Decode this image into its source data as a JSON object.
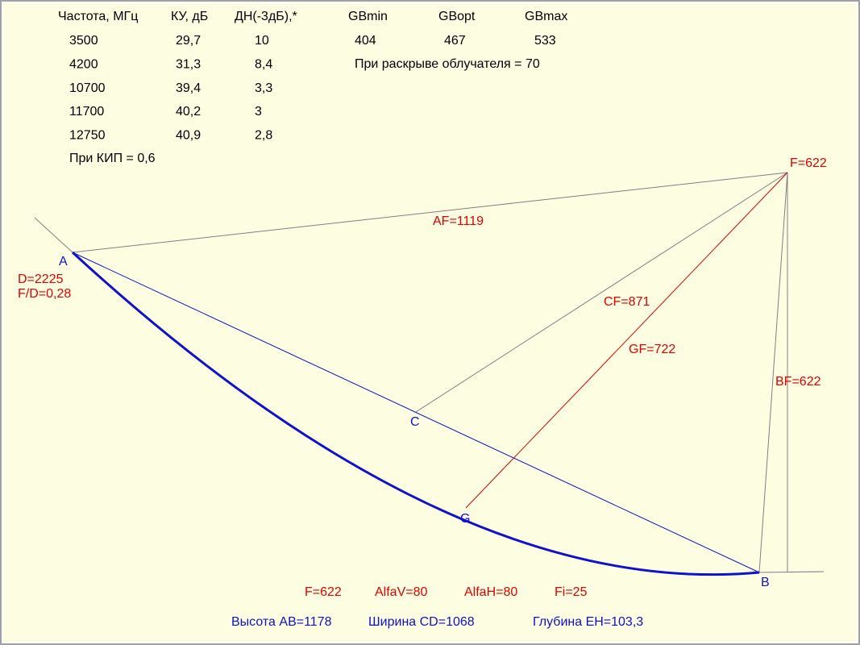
{
  "table": {
    "header": [
      "Частота, МГц",
      "КУ, дБ",
      "ДН(-3дБ),*"
    ],
    "rows": [
      [
        "3500",
        "29,7",
        "10"
      ],
      [
        "4200",
        "31,3",
        "8,4"
      ],
      [
        "10700",
        "39,4",
        "3,3"
      ],
      [
        "11700",
        "40,2",
        "3"
      ],
      [
        "12750",
        "40,9",
        "2,8"
      ]
    ],
    "note": "При КИП = 0,6"
  },
  "gb": {
    "header": [
      "GBmin",
      "GBopt",
      "GBmax"
    ],
    "values": [
      "404",
      "467",
      "533"
    ],
    "note": "При раскрыве облучателя = 70"
  },
  "diagram": {
    "focus": "F=622",
    "af": "AF=1119",
    "a": "A",
    "d": "D=2225",
    "fd": "F/D=0,28",
    "cf": "CF=871",
    "gf": "GF=722",
    "bf": "BF=622",
    "c": "C",
    "g": "G",
    "b": "B"
  },
  "params": [
    "F=622",
    "AlfaV=80",
    "AlfaH=80",
    "Fi=25"
  ],
  "sizes": [
    "Высота AB=1178",
    "Ширина CD=1068",
    "Глубина EH=103,3"
  ]
}
